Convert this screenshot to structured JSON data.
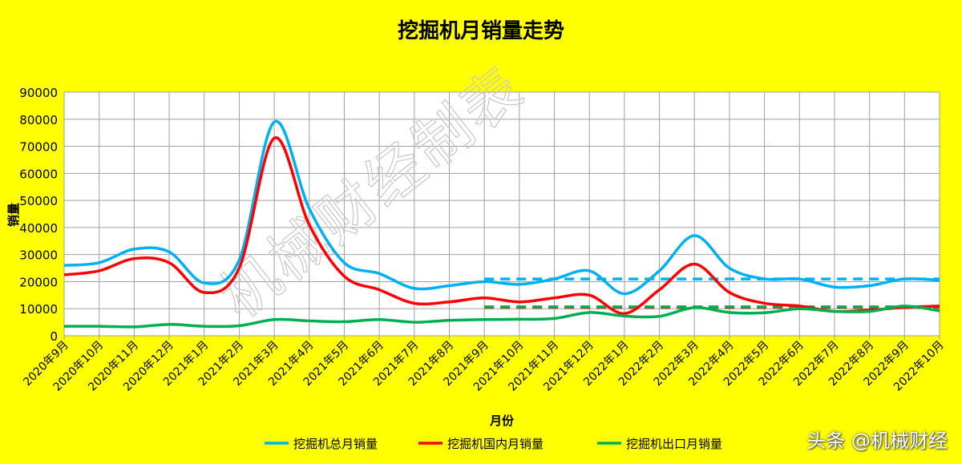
{
  "chart_data": {
    "type": "line",
    "title": "挖掘机月销量走势",
    "xlabel": "月份",
    "ylabel": "销量",
    "ylim": [
      0,
      90000
    ],
    "yticks": [
      0,
      10000,
      20000,
      30000,
      40000,
      50000,
      60000,
      70000,
      80000,
      90000
    ],
    "grid": true,
    "legend_position": "bottom",
    "categories": [
      "2020年9月",
      "2020年10月",
      "2020年11月",
      "2020年12月",
      "2021年1月",
      "2021年2月",
      "2021年3月",
      "2021年4月",
      "2021年5月",
      "2021年6月",
      "2021年7月",
      "2021年8月",
      "2021年9月",
      "2021年10月",
      "2021年11月",
      "2021年12月",
      "2022年1月",
      "2022年2月",
      "2022年3月",
      "2022年4月",
      "2022年5月",
      "2022年6月",
      "2022年7月",
      "2022年8月",
      "2022年9月",
      "2022年10月"
    ],
    "series": [
      {
        "name": "挖掘机总月销量",
        "color": "#00b0f0",
        "values": [
          26000,
          27000,
          32000,
          31000,
          19500,
          28000,
          79000,
          47000,
          27000,
          23000,
          17500,
          18500,
          20000,
          19000,
          21000,
          24000,
          15500,
          24000,
          37000,
          25000,
          21000,
          21000,
          18000,
          18500,
          21000,
          20500
        ]
      },
      {
        "name": "挖掘机国内月销量",
        "color": "#ff0000",
        "values": [
          22500,
          24000,
          28500,
          27000,
          16000,
          25000,
          73000,
          41000,
          22000,
          17000,
          12000,
          12500,
          14000,
          12500,
          14000,
          15000,
          8200,
          17000,
          26500,
          16000,
          12000,
          11000,
          9000,
          9500,
          10500,
          11000
        ]
      },
      {
        "name": "挖掘机出口月销量",
        "color": "#00b050",
        "values": [
          3500,
          3500,
          3300,
          4200,
          3500,
          3700,
          6000,
          5500,
          5200,
          6000,
          5000,
          5700,
          6000,
          6100,
          6400,
          8600,
          7300,
          7200,
          10400,
          8600,
          8500,
          10000,
          9000,
          9000,
          11000,
          9200
        ]
      }
    ],
    "reference_lines": [
      {
        "color": "#00b0f0",
        "value": 21000,
        "from": "2021年9月",
        "to": "2022年10月"
      },
      {
        "color": "#ff0000",
        "value": 10500,
        "from": "2021年9月",
        "to": "2022年10月"
      },
      {
        "color": "#00b050",
        "value": 10700,
        "from": "2021年9月",
        "to": "2022年10月"
      }
    ]
  },
  "watermark": "机械财经制表",
  "brand": "头条 @机械财经"
}
